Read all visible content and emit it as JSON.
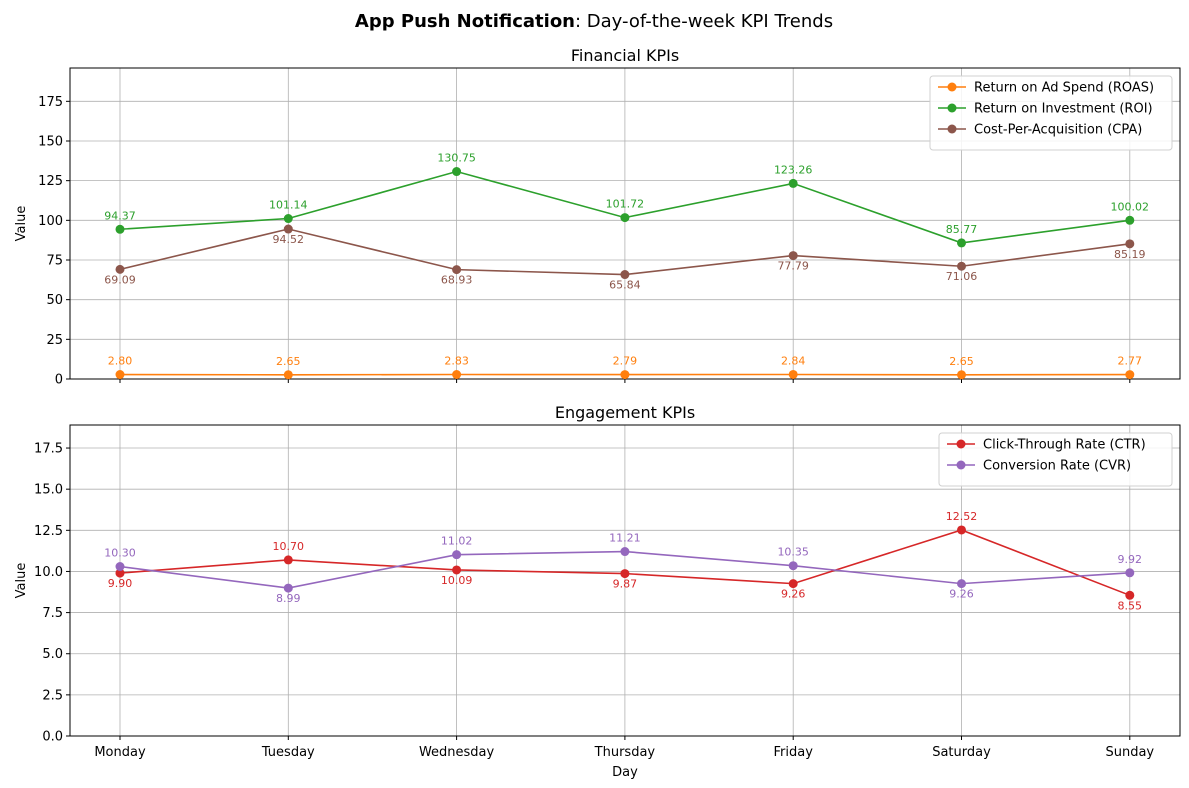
{
  "figure": {
    "title_bold": "App Push Notification",
    "title_rest": ": Day-of-the-week KPI Trends"
  },
  "chart_data": [
    {
      "type": "line",
      "title": "Financial KPIs",
      "xlabel": "",
      "ylabel": "Value",
      "categories": [
        "Monday",
        "Tuesday",
        "Wednesday",
        "Thursday",
        "Friday",
        "Saturday",
        "Sunday"
      ],
      "show_xticklabels": false,
      "ylim": [
        0,
        196
      ],
      "yticks": [
        0,
        25,
        50,
        75,
        100,
        125,
        150,
        175
      ],
      "grid": true,
      "legend_position": "top-right",
      "series": [
        {
          "name": "Return on Ad Spend (ROAS)",
          "color": "#ff7f0e",
          "values": [
            2.8,
            2.65,
            2.83,
            2.79,
            2.84,
            2.65,
            2.77
          ],
          "labels": [
            "2.80",
            "2.65",
            "2.83",
            "2.79",
            "2.84",
            "2.65",
            "2.77"
          ],
          "label_side": [
            "above",
            "above",
            "above",
            "above",
            "above",
            "above",
            "above"
          ]
        },
        {
          "name": "Return on Investment (ROI)",
          "color": "#2ca02c",
          "values": [
            94.37,
            101.14,
            130.75,
            101.72,
            123.26,
            85.77,
            100.02
          ],
          "labels": [
            "94.37",
            "101.14",
            "130.75",
            "101.72",
            "123.26",
            "85.77",
            "100.02"
          ],
          "label_side": [
            "above",
            "above",
            "above",
            "above",
            "above",
            "above",
            "above"
          ]
        },
        {
          "name": "Cost-Per-Acquisition (CPA)",
          "color": "#8c564b",
          "values": [
            69.09,
            94.52,
            68.93,
            65.84,
            77.79,
            71.06,
            85.19
          ],
          "labels": [
            "69.09",
            "94.52",
            "68.93",
            "65.84",
            "77.79",
            "71.06",
            "85.19"
          ],
          "label_side": [
            "below",
            "below",
            "below",
            "below",
            "below",
            "below",
            "below"
          ]
        }
      ]
    },
    {
      "type": "line",
      "title": "Engagement KPIs",
      "xlabel": "Day",
      "ylabel": "Value",
      "categories": [
        "Monday",
        "Tuesday",
        "Wednesday",
        "Thursday",
        "Friday",
        "Saturday",
        "Sunday"
      ],
      "show_xticklabels": true,
      "ylim": [
        0,
        18.9
      ],
      "yticks": [
        0.0,
        2.5,
        5.0,
        7.5,
        10.0,
        12.5,
        15.0,
        17.5
      ],
      "yticklabels": [
        "0.0",
        "2.5",
        "5.0",
        "7.5",
        "10.0",
        "12.5",
        "15.0",
        "17.5"
      ],
      "grid": true,
      "legend_position": "top-right",
      "series": [
        {
          "name": "Click-Through Rate (CTR)",
          "color": "#d62728",
          "values": [
            9.9,
            10.7,
            10.09,
            9.87,
            9.26,
            12.52,
            8.55
          ],
          "labels": [
            "9.90",
            "10.70",
            "10.09",
            "9.87",
            "9.26",
            "12.52",
            "8.55"
          ],
          "label_side": [
            "below",
            "above",
            "below",
            "below",
            "below",
            "above",
            "below"
          ]
        },
        {
          "name": "Conversion Rate (CVR)",
          "color": "#9467bd",
          "values": [
            10.3,
            8.99,
            11.02,
            11.21,
            10.35,
            9.26,
            9.92
          ],
          "labels": [
            "10.30",
            "8.99",
            "11.02",
            "11.21",
            "10.35",
            "9.26",
            "9.92"
          ],
          "label_side": [
            "above",
            "below",
            "above",
            "above",
            "above",
            "below",
            "above"
          ]
        }
      ]
    }
  ]
}
